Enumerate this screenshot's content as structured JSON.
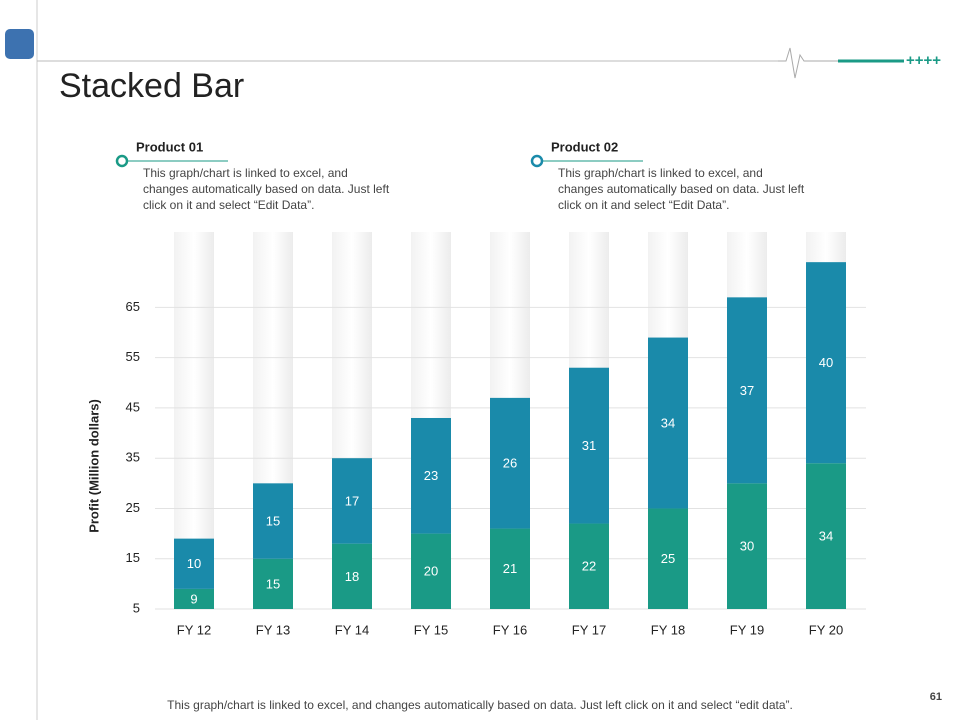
{
  "header": {
    "decoration": "++++"
  },
  "chart_data": {
    "type": "stacked-bar",
    "title": "Stacked Bar",
    "y_label": "Profit  (Million dollars)",
    "categories": [
      "FY 12",
      "FY 13",
      "FY 14",
      "FY 15",
      "FY 16",
      "FY 17",
      "FY 18",
      "FY 19",
      "FY 20"
    ],
    "series": [
      {
        "name": "Product 01",
        "color": "#1a9a86",
        "description": "This graph/chart is linked to excel, and changes automatically based on data. Just left click on it and select “Edit Data”.",
        "values": [
          9,
          15,
          18,
          20,
          21,
          22,
          25,
          30,
          34
        ]
      },
      {
        "name": "Product 02",
        "color": "#1a8aaa",
        "description": "This graph/chart is linked to excel, and changes automatically based on data. Just left click on it and select “Edit Data”.",
        "values": [
          10,
          15,
          17,
          23,
          26,
          31,
          34,
          37,
          40
        ]
      }
    ],
    "ylim": [
      5,
      80
    ],
    "yticks": [
      5,
      15,
      25,
      35,
      45,
      55,
      65
    ],
    "grid": true
  },
  "footer": {
    "note": "This graph/chart is linked to excel, and changes automatically based on data. Just left click on it and select “edit data”.",
    "page_number": 61
  }
}
